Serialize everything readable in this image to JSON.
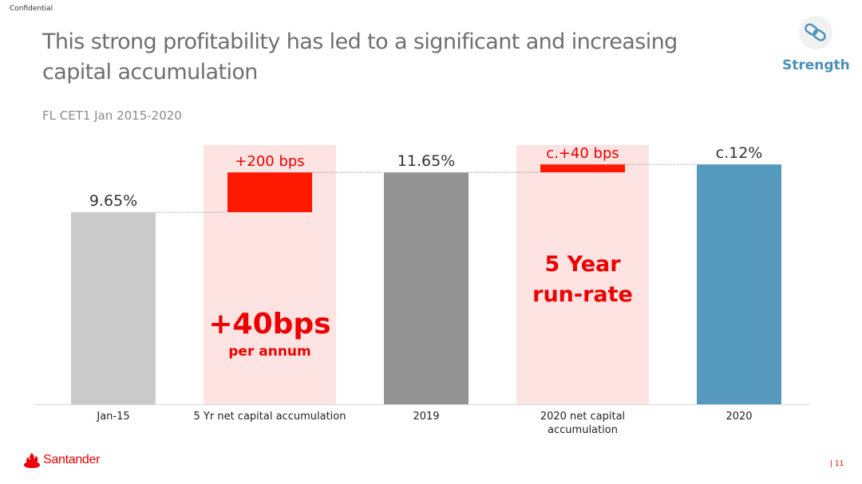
{
  "header": {
    "confidential": "Confidential",
    "title": "This strong profitability has led to a significant and increasing capital accumulation",
    "subtitle": "FL CET1 Jan 2015-2020",
    "badge_label": "Strength",
    "badge_icon": "chain-link-icon"
  },
  "footer": {
    "brand": "Santander",
    "brand_icon": "flame-icon",
    "page_number": "| 11"
  },
  "colors": {
    "brand_red": "#ec0000",
    "bar_red": "#fe1a00",
    "highlight_bg": "#fde3e1",
    "bar_light_grey": "#cbcbcb",
    "bar_dark_grey": "#939393",
    "bar_blue": "#5599be",
    "badge_blue": "#4a90b8"
  },
  "chart_data": {
    "type": "bar",
    "subtype": "waterfall",
    "categories": [
      "Jan-15",
      "5 Yr net capital accumulation",
      "2019",
      "2020 net capital accumulation",
      "2020"
    ],
    "category_lines": [
      [
        "Jan-15"
      ],
      [
        "5 Yr net capital accumulation"
      ],
      [
        "2019"
      ],
      [
        "2020 net capital",
        "accumulation"
      ],
      [
        "2020"
      ]
    ],
    "bars": [
      {
        "category": "Jan-15",
        "kind": "total",
        "value": 9.65,
        "label": "9.65%"
      },
      {
        "category": "5 Yr net capital accumulation",
        "kind": "increment",
        "start": 9.65,
        "end": 11.65,
        "label": "+200 bps"
      },
      {
        "category": "2019",
        "kind": "total",
        "value": 11.65,
        "label": "11.65%"
      },
      {
        "category": "2020 net capital accumulation",
        "kind": "increment",
        "start": 11.65,
        "end": 12.05,
        "label": "c.+40 bps"
      },
      {
        "category": "2020",
        "kind": "total",
        "value": 12.05,
        "label": "c.12%"
      }
    ],
    "highlighted_categories": [
      "5 Yr net capital accumulation",
      "2020 net capital accumulation"
    ],
    "annotations": [
      {
        "category": "5 Yr net capital accumulation",
        "lines": [
          "+40bps",
          "per annum"
        ]
      },
      {
        "category": "2020 net capital accumulation",
        "lines": [
          "5 Year",
          "run-rate"
        ]
      }
    ],
    "ylim": [
      0,
      12.7
    ],
    "grid": false,
    "legend": "none"
  }
}
